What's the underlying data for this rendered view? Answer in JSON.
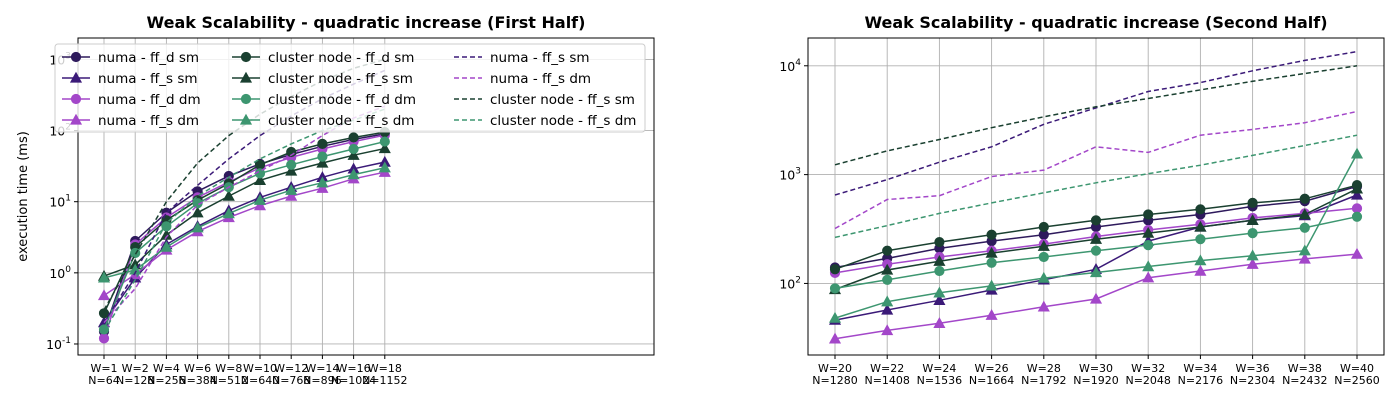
{
  "colors": {
    "numa_sm": "#2e1a5c",
    "numa_s_sm": "#3b1a78",
    "numa_dm": "#a347c9",
    "cluster_sm": "#1a4030",
    "cluster_dm": "#3d9670",
    "grid": "#b0b0b0"
  },
  "chart_data": [
    {
      "type": "line",
      "title": "Weak Scalability - quadratic increase (First Half)",
      "ylabel": "execution time (ms)",
      "yscale": "log",
      "ylim": [
        0.07,
        2000
      ],
      "yticks": [
        "10^{-1}",
        "10^{0}",
        "10^{1}",
        "10^{2}",
        "10^{3}"
      ],
      "grid": true,
      "legend_position": "top, 3 columns",
      "x_labels": [
        [
          "W=1",
          "N=64"
        ],
        [
          "W=2",
          "N=128"
        ],
        [
          "W=4",
          "N=256"
        ],
        [
          "W=6",
          "N=384"
        ],
        [
          "W=8",
          "N=512"
        ],
        [
          "W=10",
          "N=640"
        ],
        [
          "W=12",
          "N=768"
        ],
        [
          "W=14",
          "N=896"
        ],
        [
          "W=16",
          "N=1024"
        ],
        [
          "W=18",
          "N=1152"
        ]
      ],
      "x": [
        1,
        2,
        4,
        6,
        8,
        10,
        12,
        14,
        16,
        18
      ],
      "series": [
        {
          "name": "numa - ff_d sm",
          "color": "numa_sm",
          "marker": "circle",
          "dash": false,
          "values": [
            0.15,
            2.8,
            7.0,
            14,
            23,
            34,
            46,
            60,
            75,
            90
          ]
        },
        {
          "name": "numa - ff_s sm",
          "color": "numa_s_sm",
          "marker": "triangle",
          "dash": false,
          "values": [
            0.2,
            0.85,
            2.5,
            4.5,
            7.5,
            11.5,
            16,
            22,
            29,
            36
          ]
        },
        {
          "name": "numa - ff_d dm",
          "color": "numa_dm",
          "marker": "circle",
          "dash": false,
          "values": [
            0.12,
            2.5,
            6.0,
            11.5,
            19,
            30,
            42,
            55,
            70,
            86
          ]
        },
        {
          "name": "numa - ff_s dm",
          "color": "numa_dm",
          "marker": "triangle",
          "dash": false,
          "values": [
            0.48,
            0.95,
            2.1,
            3.8,
            6.0,
            8.8,
            12,
            15.5,
            21,
            26
          ]
        },
        {
          "name": "cluster node - ff_d sm",
          "color": "cluster_sm",
          "marker": "circle",
          "dash": false,
          "values": [
            0.27,
            2.3,
            5.5,
            10.5,
            18,
            33,
            50,
            65,
            80,
            95
          ]
        },
        {
          "name": "cluster node - ff_s sm",
          "color": "cluster_sm",
          "marker": "triangle",
          "dash": false,
          "values": [
            0.9,
            1.3,
            3.4,
            7.0,
            12,
            20,
            27,
            35,
            45,
            56
          ]
        },
        {
          "name": "cluster node - ff_d dm",
          "color": "cluster_dm",
          "marker": "circle",
          "dash": false,
          "values": [
            0.16,
            1.9,
            4.5,
            9.5,
            16,
            25,
            33,
            43,
            55,
            70
          ]
        },
        {
          "name": "cluster node - ff_s dm",
          "color": "cluster_dm",
          "marker": "triangle",
          "dash": false,
          "values": [
            0.85,
            1.1,
            2.3,
            4.3,
            6.8,
            10.5,
            14.5,
            18.5,
            24,
            30
          ]
        },
        {
          "name": "numa - ff_s sm",
          "color": "numa_s_sm",
          "marker": "none",
          "dash": true,
          "values": [
            0.2,
            1.0,
            7.0,
            17,
            40,
            85,
            160,
            280,
            450,
            700
          ]
        },
        {
          "name": "numa - ff_s dm",
          "color": "numa_dm",
          "marker": "none",
          "dash": true,
          "values": [
            0.2,
            0.6,
            3.2,
            9.0,
            16,
            27,
            45,
            85,
            150,
            220
          ]
        },
        {
          "name": "cluster node - ff_s sm",
          "color": "cluster_sm",
          "marker": "none",
          "dash": true,
          "values": [
            0.3,
            1.8,
            10,
            35,
            85,
            170,
            300,
            500,
            750,
            1000
          ]
        },
        {
          "name": "cluster node - ff_s dm",
          "color": "cluster_dm",
          "marker": "none",
          "dash": true,
          "values": [
            0.15,
            0.8,
            5.0,
            12,
            22,
            40,
            65,
            100,
            140,
            200
          ]
        }
      ]
    },
    {
      "type": "line",
      "title": "Weak Scalability - quadratic increase (Second Half)",
      "yscale": "log",
      "ylim": [
        22,
        18000
      ],
      "yticks": [
        "10^{2}",
        "10^{3}",
        "10^{4}"
      ],
      "grid": true,
      "x_labels": [
        [
          "W=20",
          "N=1280"
        ],
        [
          "W=22",
          "N=1408"
        ],
        [
          "W=24",
          "N=1536"
        ],
        [
          "W=26",
          "N=1664"
        ],
        [
          "W=28",
          "N=1792"
        ],
        [
          "W=30",
          "N=1920"
        ],
        [
          "W=32",
          "N=2048"
        ],
        [
          "W=34",
          "N=2176"
        ],
        [
          "W=36",
          "N=2304"
        ],
        [
          "W=38",
          "N=2432"
        ],
        [
          "W=40",
          "N=2560"
        ]
      ],
      "x": [
        20,
        22,
        24,
        26,
        28,
        30,
        32,
        34,
        36,
        38,
        40
      ],
      "series": [
        {
          "name": "numa - ff_d sm",
          "color": "numa_sm",
          "marker": "circle",
          "dash": false,
          "values": [
            140,
            170,
            210,
            245,
            280,
            330,
            380,
            430,
            510,
            570,
            780
          ]
        },
        {
          "name": "numa - ff_s sm",
          "color": "numa_s_sm",
          "marker": "triangle",
          "dash": false,
          "values": [
            46,
            57,
            70,
            87,
            108,
            135,
            245,
            330,
            380,
            420,
            650
          ]
        },
        {
          "name": "numa - ff_d dm",
          "color": "numa_dm",
          "marker": "circle",
          "dash": false,
          "values": [
            125,
            150,
            175,
            200,
            230,
            270,
            310,
            350,
            400,
            440,
            490
          ]
        },
        {
          "name": "numa - ff_s dm",
          "color": "numa_dm",
          "marker": "triangle",
          "dash": false,
          "values": [
            31,
            37,
            43,
            51,
            61,
            72,
            113,
            130,
            150,
            168,
            186
          ]
        },
        {
          "name": "cluster node - ff_d sm",
          "color": "cluster_sm",
          "marker": "circle",
          "dash": false,
          "values": [
            135,
            200,
            240,
            280,
            330,
            380,
            430,
            480,
            550,
            600,
            800
          ]
        },
        {
          "name": "cluster node - ff_s sm",
          "color": "cluster_sm",
          "marker": "triangle",
          "dash": false,
          "values": [
            88,
            133,
            160,
            190,
            220,
            255,
            290,
            330,
            380,
            430,
            740
          ]
        },
        {
          "name": "cluster node - ff_d dm",
          "color": "cluster_dm",
          "marker": "circle",
          "dash": false,
          "values": [
            90,
            108,
            130,
            155,
            175,
            200,
            225,
            255,
            290,
            325,
            410
          ]
        },
        {
          "name": "cluster node - ff_s dm",
          "color": "cluster_dm",
          "marker": "triangle",
          "dash": false,
          "values": [
            48,
            68,
            82,
            95,
            112,
            126,
            143,
            162,
            180,
            200,
            1550
          ]
        },
        {
          "name": "numa - ff_s sm",
          "color": "numa_s_sm",
          "marker": "none",
          "dash": true,
          "values": [
            650,
            900,
            1300,
            1800,
            2900,
            4100,
            5800,
            7000,
            9000,
            11200,
            13500
          ]
        },
        {
          "name": "numa - ff_s dm",
          "color": "numa_dm",
          "marker": "none",
          "dash": true,
          "values": [
            320,
            590,
            640,
            960,
            1100,
            1800,
            1600,
            2300,
            2600,
            3000,
            3800
          ]
        },
        {
          "name": "cluster node - ff_s sm",
          "color": "cluster_sm",
          "marker": "none",
          "dash": true,
          "values": [
            1230,
            1650,
            2100,
            2700,
            3400,
            4200,
            5000,
            6000,
            7200,
            8500,
            10000
          ]
        },
        {
          "name": "cluster node - ff_s dm",
          "color": "cluster_dm",
          "marker": "none",
          "dash": true,
          "values": [
            265,
            340,
            440,
            550,
            680,
            840,
            1020,
            1220,
            1500,
            1850,
            2300
          ]
        }
      ]
    }
  ]
}
